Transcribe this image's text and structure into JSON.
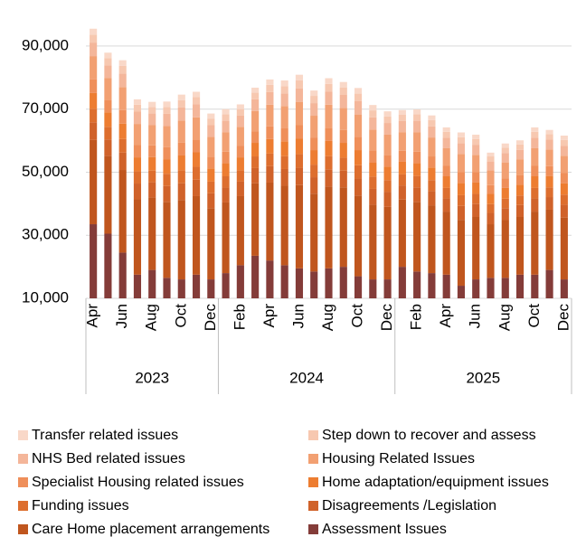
{
  "chart_data": {
    "type": "stacked_bar",
    "categories": [
      "Apr",
      null,
      "Jun",
      null,
      "Aug",
      null,
      "Oct",
      null,
      "Dec",
      null,
      "Feb",
      null,
      "Apr",
      null,
      "Jun",
      null,
      "Aug",
      null,
      "Oct",
      null,
      "Dec",
      null,
      "Feb",
      null,
      "Apr",
      null,
      "Jun",
      null,
      "Aug",
      null,
      "Oct",
      null,
      "Dec"
    ],
    "year_groups": [
      {
        "name": "2023",
        "size": 9
      },
      {
        "name": "2024",
        "size": 12
      },
      {
        "name": "2025",
        "size": 12
      }
    ],
    "ylim": [
      10000,
      96000
    ],
    "yticks": [
      {
        "value": 10000,
        "label": "10,000"
      },
      {
        "value": 30000,
        "label": "30,000"
      },
      {
        "value": 50000,
        "label": "50,000"
      },
      {
        "value": 70000,
        "label": "70,000"
      },
      {
        "value": 90000,
        "label": "90,000"
      }
    ],
    "grid": true,
    "legend": "bottom",
    "series": [
      {
        "name": "Assessment Issues",
        "color": "#843c39",
        "values": [
          33500,
          30500,
          24500,
          17500,
          19000,
          16500,
          16000,
          17500,
          16000,
          18000,
          20500,
          23500,
          22000,
          20500,
          19500,
          18500,
          19500,
          20000,
          17000,
          16000,
          16000,
          20000,
          18500,
          18000,
          17500,
          14000,
          16000,
          16500,
          16500,
          17500,
          17500,
          19000,
          16000
        ]
      },
      {
        "name": "Care Home placement arrangements",
        "color": "#c0561e",
        "values": [
          26700,
          24700,
          26200,
          23900,
          23000,
          24100,
          25200,
          24900,
          22600,
          22400,
          21900,
          23000,
          24700,
          25200,
          26400,
          24700,
          26000,
          25200,
          25600,
          23700,
          23000,
          21300,
          22100,
          21500,
          20000,
          20900,
          19800,
          17000,
          18300,
          18300,
          20000,
          19100,
          19600
        ]
      },
      {
        "name": "Disagreements /Legislation",
        "color": "#d0622a",
        "values": [
          5600,
          5200,
          5500,
          5000,
          4800,
          5000,
          5300,
          5200,
          4700,
          4700,
          4600,
          4800,
          5200,
          5300,
          5500,
          5200,
          5400,
          5300,
          5400,
          5000,
          4800,
          4500,
          4600,
          4500,
          4200,
          4400,
          4100,
          3600,
          3800,
          3800,
          4200,
          4000,
          4100
        ]
      },
      {
        "name": "Funding issues",
        "color": "#dd6e2e",
        "values": [
          4300,
          4000,
          4300,
          3900,
          3700,
          3900,
          4100,
          4100,
          3700,
          3600,
          3600,
          3700,
          4000,
          4100,
          4300,
          4000,
          4200,
          4100,
          4200,
          3900,
          3700,
          3500,
          3600,
          3500,
          3300,
          3400,
          3200,
          2800,
          3000,
          3000,
          3300,
          3100,
          3200
        ]
      },
      {
        "name": "Home adaptation/equipment issues",
        "color": "#ed7d31",
        "values": [
          5000,
          4600,
          4900,
          4400,
          4300,
          4500,
          4700,
          4600,
          4200,
          4200,
          4100,
          4300,
          4600,
          4700,
          4900,
          4600,
          4800,
          4700,
          4800,
          4400,
          4300,
          4000,
          4100,
          4000,
          3700,
          3900,
          3700,
          3200,
          3400,
          3400,
          3700,
          3600,
          3600
        ]
      },
      {
        "name": "Specialist Housing related issues",
        "color": "#ef8f5a",
        "values": [
          4300,
          4000,
          4300,
          3900,
          3700,
          3900,
          4100,
          4100,
          3700,
          3600,
          3600,
          3700,
          4000,
          4100,
          4300,
          4000,
          4200,
          4100,
          4200,
          3900,
          3700,
          3500,
          3600,
          3500,
          3300,
          3400,
          3200,
          2800,
          3000,
          3000,
          3300,
          3100,
          3200
        ]
      },
      {
        "name": "Housing Related Issues",
        "color": "#f2a072",
        "values": [
          7400,
          6900,
          7300,
          6700,
          6400,
          6700,
          7000,
          7000,
          6300,
          6200,
          6100,
          6400,
          6900,
          7000,
          7400,
          6900,
          7300,
          7000,
          7100,
          6600,
          6400,
          5900,
          6200,
          6000,
          5600,
          5800,
          5500,
          4700,
          5100,
          5100,
          5600,
          5300,
          5500
        ]
      },
      {
        "name": "NHS Bed related issues",
        "color": "#f4b69a",
        "values": [
          4300,
          4000,
          4300,
          3900,
          3700,
          3900,
          4100,
          4100,
          3700,
          3600,
          3600,
          3700,
          4000,
          4100,
          4300,
          4000,
          4200,
          4100,
          4200,
          3900,
          3700,
          3500,
          3600,
          3500,
          3300,
          3400,
          3200,
          2800,
          3000,
          3000,
          3300,
          3100,
          3200
        ]
      },
      {
        "name": "Step down to recover and assess",
        "color": "#f7c8b0",
        "values": [
          2500,
          2300,
          2400,
          2200,
          2100,
          2200,
          2300,
          2300,
          2100,
          2100,
          2000,
          2100,
          2300,
          2300,
          2500,
          2300,
          2400,
          2300,
          2400,
          2200,
          2100,
          2000,
          2100,
          2000,
          1900,
          1900,
          1800,
          1600,
          1700,
          1700,
          1900,
          1800,
          1800
        ]
      },
      {
        "name": "Transfer related issues",
        "color": "#f9d8c8",
        "values": [
          1900,
          1700,
          1800,
          1700,
          1600,
          1700,
          1800,
          1700,
          1600,
          1600,
          1500,
          1600,
          1700,
          1800,
          1800,
          1700,
          1800,
          1800,
          1800,
          1700,
          1600,
          1500,
          1500,
          1500,
          1400,
          1500,
          1400,
          1200,
          1300,
          1300,
          1400,
          1300,
          1400
        ]
      }
    ]
  }
}
